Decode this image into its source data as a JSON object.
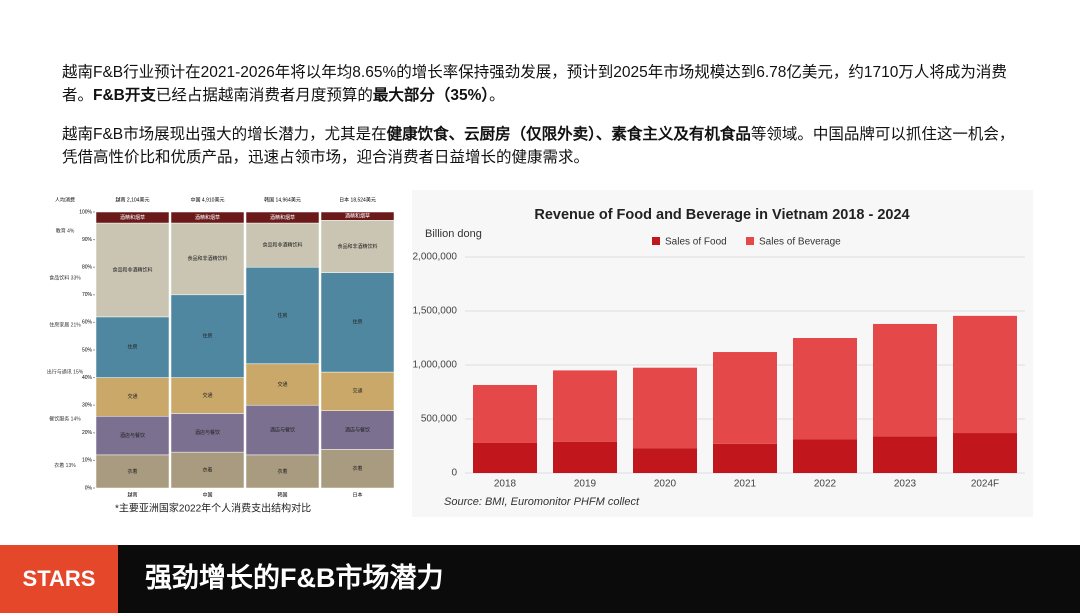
{
  "paragraphs": [
    [
      {
        "text": "越南F&B行业预计在2021-2026年将以年均8.65%的增长率保持强劲发展，预计到2025年市场规模达到6.78亿美元，约1710万人将成为消费者。",
        "bold": false
      },
      {
        "text": "F&B开支",
        "bold": true
      },
      {
        "text": "已经占据越南消费者月度预算的",
        "bold": false
      },
      {
        "text": "最大部分（35%）",
        "bold": true
      },
      {
        "text": "。",
        "bold": false
      }
    ],
    [
      {
        "text": "越南F&B市场展现出强大的增长潜力，尤其是在",
        "bold": false
      },
      {
        "text": "健康饮食、云厨房（仅限外卖）、素食主义及有机食品",
        "bold": true
      },
      {
        "text": "等领域。中国品牌可以抓住这一机会，凭借高性价比和优质产品，迅速占领市场，迎合消费者日益增长的健康需求。",
        "bold": false
      }
    ]
  ],
  "footer": {
    "logo": "STARS",
    "title": "强劲增长的F&B市场潜力"
  },
  "chart_data": [
    {
      "type": "stacked100",
      "caption": "*主要亚洲国家2022年个人消费支出结构对比",
      "header_label": "人均消费",
      "categories": [
        "越南",
        "中国",
        "韩国",
        "日本"
      ],
      "headers": [
        "越南 2,104美元",
        "中国 4,910美元",
        "韩国 14,964美元",
        "日本 18,524美元"
      ],
      "side_labels": [
        "衣着 13%",
        "餐饮服务 14%",
        "出行与通讯 15%",
        "住房家居 21%",
        "食品饮料 33%",
        "教育 4%"
      ],
      "ylim": [
        0,
        100
      ],
      "yticks": [
        {
          "value": 0,
          "label": "0%"
        },
        {
          "value": 10,
          "label": "10%"
        },
        {
          "value": 20,
          "label": "20%"
        },
        {
          "value": 30,
          "label": "30%"
        },
        {
          "value": 40,
          "label": "40%"
        },
        {
          "value": 50,
          "label": "50%"
        },
        {
          "value": 60,
          "label": "60%"
        },
        {
          "value": 70,
          "label": "70%"
        },
        {
          "value": 80,
          "label": "80%"
        },
        {
          "value": 90,
          "label": "90%"
        },
        {
          "value": 100,
          "label": "100%"
        }
      ],
      "series": [
        {
          "name": "衣着",
          "color": "#a99b7f",
          "values": [
            12,
            13,
            12,
            14
          ]
        },
        {
          "name": "酒店与餐饮",
          "color": "#7b7090",
          "values": [
            14,
            14,
            18,
            14
          ]
        },
        {
          "name": "交通",
          "color": "#c9a86a",
          "values": [
            14,
            13,
            15,
            14
          ]
        },
        {
          "name": "住房",
          "color": "#4f87a1",
          "values": [
            22,
            30,
            35,
            36
          ]
        },
        {
          "name": "食品和非酒精饮料",
          "color": "#c9c5b2",
          "values": [
            34,
            26,
            16,
            19
          ]
        },
        {
          "name": "酒精和烟草",
          "color": "#6b1a1a",
          "values": [
            4,
            4,
            4,
            3
          ]
        }
      ]
    },
    {
      "type": "stacked_bar",
      "title": "Revenue of Food and Beverage in Vietnam 2018 - 2024",
      "ylabel": "Billion dong",
      "source": "Source: BMI, Euromonitor PHFM collect",
      "legend": "top",
      "categories": [
        "2018",
        "2019",
        "2020",
        "2021",
        "2022",
        "2023",
        "2024F"
      ],
      "ylim": [
        0,
        2000000
      ],
      "yticks": [
        0,
        {
          "value": 500000,
          "label": "500,000"
        },
        {
          "value": 1000000,
          "label": "1,000,000"
        },
        {
          "value": 1500000,
          "label": "1,500,000"
        },
        {
          "value": 2000000,
          "label": "2,000,000"
        }
      ],
      "series": [
        {
          "name": "Sales of Food",
          "color": "#c0161c",
          "values": [
            278000,
            290000,
            230000,
            270000,
            310000,
            340000,
            370000
          ]
        },
        {
          "name": "Sales of Beverage",
          "color": "#e54848",
          "values": [
            537000,
            660000,
            745000,
            850000,
            940000,
            1040000,
            1085000
          ]
        }
      ]
    }
  ]
}
